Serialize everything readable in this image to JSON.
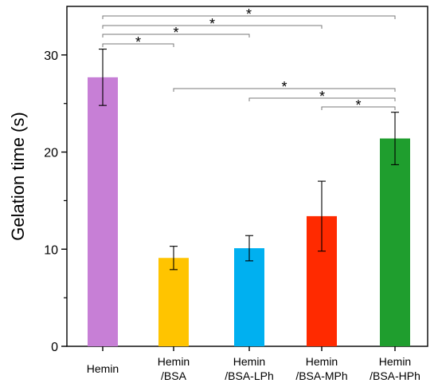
{
  "chart_data": {
    "type": "bar",
    "categories": [
      [
        "Hemin"
      ],
      [
        "Hemin",
        "/BSA"
      ],
      [
        "Hemin",
        "/BSA-LPh"
      ],
      [
        "Hemin",
        "/BSA-MPh"
      ],
      [
        "Hemin",
        "/BSA-HPh"
      ]
    ],
    "values": [
      27.7,
      9.1,
      10.1,
      13.4,
      21.4
    ],
    "errors": [
      2.9,
      1.2,
      1.3,
      3.6,
      2.7
    ],
    "colors": [
      "#c77fd6",
      "#ffc400",
      "#00b0f0",
      "#ff2a00",
      "#1f9e2e"
    ],
    "ylabel": "Gelation time (s)",
    "xlabel": "",
    "title": "",
    "ylim": [
      0,
      35
    ],
    "yticks": [
      0,
      10,
      20,
      30
    ],
    "grid": false,
    "significance": [
      {
        "from": 0,
        "to": 4,
        "label": "*"
      },
      {
        "from": 0,
        "to": 3,
        "label": "*"
      },
      {
        "from": 0,
        "to": 2,
        "label": "*"
      },
      {
        "from": 0,
        "to": 1,
        "label": "*"
      },
      {
        "from": 1,
        "to": 4,
        "label": "*"
      },
      {
        "from": 2,
        "to": 4,
        "label": "*"
      },
      {
        "from": 3,
        "to": 4,
        "label": "*"
      }
    ]
  }
}
